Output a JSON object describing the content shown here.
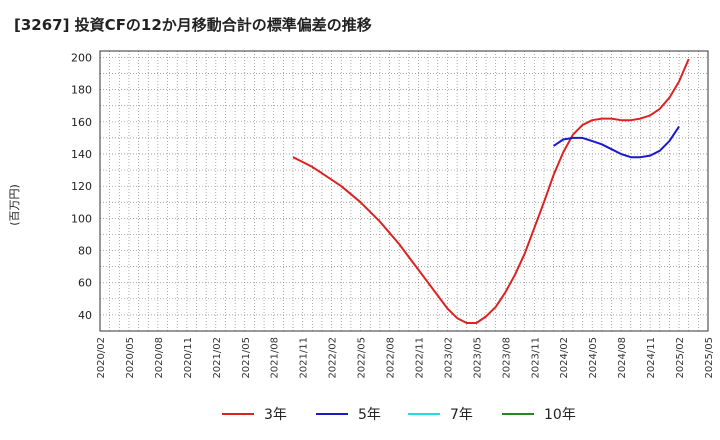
{
  "header": {
    "title": "[3267]  投資CFの12か月移動合計の標準偏差の推移"
  },
  "chart_data": {
    "type": "line",
    "title": "[3267]  投資CFの12か月移動合計の標準偏差の推移",
    "ylabel": "(百万円)",
    "xlabel": "",
    "ylim": [
      30,
      204
    ],
    "yticks": [
      40,
      60,
      80,
      100,
      120,
      140,
      160,
      180,
      200
    ],
    "grid": true,
    "legend_position": "bottom",
    "x_categories": [
      "2020/02",
      "2020/05",
      "2020/08",
      "2020/11",
      "2021/02",
      "2021/05",
      "2021/08",
      "2021/11",
      "2022/02",
      "2022/05",
      "2022/08",
      "2022/11",
      "2023/02",
      "2023/05",
      "2023/08",
      "2023/11",
      "2024/02",
      "2024/05",
      "2024/08",
      "2024/11",
      "2025/02",
      "2025/05"
    ],
    "series": [
      {
        "name": "3年",
        "color": "#dd2222",
        "points": [
          [
            "2021/10",
            138
          ],
          [
            "2021/11",
            135
          ],
          [
            "2021/12",
            132
          ],
          [
            "2022/01",
            128
          ],
          [
            "2022/02",
            124
          ],
          [
            "2022/03",
            120
          ],
          [
            "2022/04",
            115
          ],
          [
            "2022/05",
            110
          ],
          [
            "2022/06",
            104
          ],
          [
            "2022/07",
            98
          ],
          [
            "2022/08",
            91
          ],
          [
            "2022/09",
            84
          ],
          [
            "2022/10",
            76
          ],
          [
            "2022/11",
            68
          ],
          [
            "2022/12",
            60
          ],
          [
            "2023/01",
            52
          ],
          [
            "2023/02",
            44
          ],
          [
            "2023/03",
            38
          ],
          [
            "2023/04",
            35
          ],
          [
            "2023/05",
            35
          ],
          [
            "2023/06",
            39
          ],
          [
            "2023/07",
            45
          ],
          [
            "2023/08",
            54
          ],
          [
            "2023/09",
            65
          ],
          [
            "2023/10",
            78
          ],
          [
            "2023/11",
            94
          ],
          [
            "2023/12",
            110
          ],
          [
            "2024/01",
            127
          ],
          [
            "2024/02",
            141
          ],
          [
            "2024/03",
            152
          ],
          [
            "2024/04",
            158
          ],
          [
            "2024/05",
            161
          ],
          [
            "2024/06",
            162
          ],
          [
            "2024/07",
            162
          ],
          [
            "2024/08",
            161
          ],
          [
            "2024/09",
            161
          ],
          [
            "2024/10",
            162
          ],
          [
            "2024/11",
            164
          ],
          [
            "2024/12",
            168
          ],
          [
            "2025/01",
            175
          ],
          [
            "2025/02",
            185
          ],
          [
            "2025/03",
            199
          ]
        ]
      },
      {
        "name": "5年",
        "color": "#1a1acc",
        "points": [
          [
            "2024/01",
            145
          ],
          [
            "2024/02",
            149
          ],
          [
            "2024/03",
            150
          ],
          [
            "2024/04",
            150
          ],
          [
            "2024/05",
            148
          ],
          [
            "2024/06",
            146
          ],
          [
            "2024/07",
            143
          ],
          [
            "2024/08",
            140
          ],
          [
            "2024/09",
            138
          ],
          [
            "2024/10",
            138
          ],
          [
            "2024/11",
            139
          ],
          [
            "2024/12",
            142
          ],
          [
            "2025/01",
            148
          ],
          [
            "2025/02",
            157
          ]
        ]
      },
      {
        "name": "7年",
        "color": "#22dddd",
        "points": []
      },
      {
        "name": "10年",
        "color": "#228822",
        "points": []
      }
    ]
  }
}
